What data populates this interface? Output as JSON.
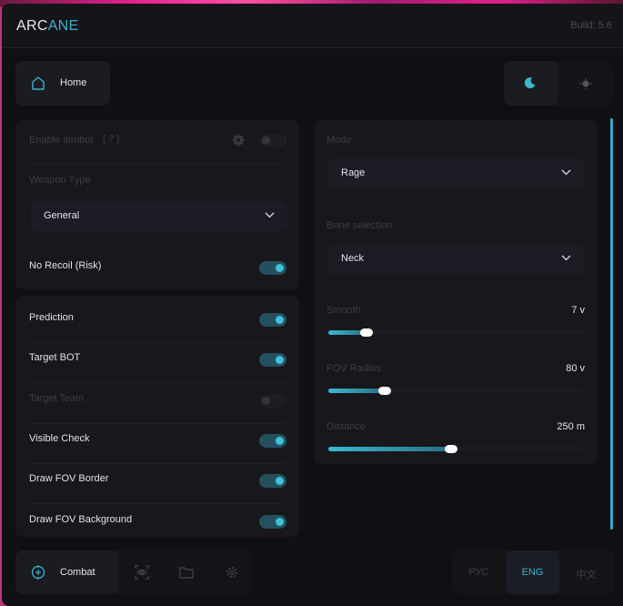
{
  "header": {
    "logo_part1": "ARC",
    "logo_part2": "ANE",
    "build": "Build: 5.6"
  },
  "nav": {
    "home_label": "Home"
  },
  "theme": {
    "options": [
      "dark",
      "light"
    ],
    "selected": "dark"
  },
  "aimbot": {
    "enable_label": "Enable aimbot",
    "help_label": "[ ? ]",
    "enabled": false,
    "weapon_type_label": "Weapon Type",
    "weapon_type_value": "General",
    "no_recoil_label": "No Recoil (Risk)",
    "no_recoil": true
  },
  "toggles": [
    {
      "label": "Prediction",
      "on": true,
      "disabled": false
    },
    {
      "label": "Target BOT",
      "on": true,
      "disabled": false
    },
    {
      "label": "Target Team",
      "on": false,
      "disabled": true
    },
    {
      "label": "Visible Check",
      "on": true,
      "disabled": false
    },
    {
      "label": "Draw FOV Border",
      "on": true,
      "disabled": false
    },
    {
      "label": "Draw FOV Background",
      "on": true,
      "disabled": false
    }
  ],
  "right": {
    "mode_label": "Mode",
    "mode_value": "Rage",
    "bone_label": "Bone selection",
    "bone_value": "Neck",
    "sliders": [
      {
        "label": "Smooth",
        "value": "7 v",
        "percent": 15
      },
      {
        "label": "FOV Radius",
        "value": "80 v",
        "percent": 22
      },
      {
        "label": "Distance",
        "value": "250 m",
        "percent": 48
      }
    ]
  },
  "bottom": {
    "tab_combat": "Combat",
    "tabs": [
      "combat",
      "visuals",
      "files",
      "settings"
    ],
    "languages": [
      "РУС",
      "ENG",
      "中文"
    ],
    "selected_language": "ENG"
  },
  "colors": {
    "accent": "#3fb2cc",
    "background": "#101014",
    "panel": "#17171c"
  }
}
